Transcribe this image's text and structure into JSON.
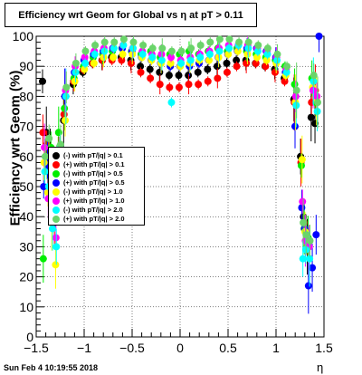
{
  "chart_data": {
    "type": "scatter",
    "title": "Efficiency wrt Geom for Global vs  η at pT > 0.11",
    "ylabel": "Efficiency wrt Geom (%)",
    "xlabel": "η",
    "xlim": [
      -1.5,
      1.5
    ],
    "ylim": [
      0,
      100
    ],
    "x_ticks": [
      "−1.5",
      "−1",
      "−0.5",
      "0",
      "0.5",
      "1",
      "1.5"
    ],
    "y_ticks": [
      "0",
      "10",
      "20",
      "30",
      "40",
      "50",
      "60",
      "70",
      "80",
      "90",
      "100"
    ],
    "grid": true,
    "legend_position": "middle-left",
    "series": [
      {
        "name": "(-) with pT/|q| > 0.1",
        "color": "#000000",
        "points": [
          [
            -1.42,
            85
          ],
          [
            -1.38,
            68
          ],
          [
            -1.34,
            62
          ],
          [
            -1.3,
            55
          ],
          [
            -1.26,
            48
          ],
          [
            -1.2,
            72
          ],
          [
            -1.1,
            84
          ],
          [
            -1.0,
            88
          ],
          [
            -0.9,
            91
          ],
          [
            -0.8,
            92
          ],
          [
            -0.7,
            93
          ],
          [
            -0.6,
            93
          ],
          [
            -0.5,
            92
          ],
          [
            -0.4,
            90
          ],
          [
            -0.3,
            89
          ],
          [
            -0.2,
            88
          ],
          [
            -0.1,
            87
          ],
          [
            0.0,
            87
          ],
          [
            0.1,
            87
          ],
          [
            0.2,
            88
          ],
          [
            0.3,
            89
          ],
          [
            0.4,
            90
          ],
          [
            0.5,
            91
          ],
          [
            0.6,
            92
          ],
          [
            0.7,
            92
          ],
          [
            0.8,
            91
          ],
          [
            0.9,
            90
          ],
          [
            1.0,
            89
          ],
          [
            1.1,
            86
          ],
          [
            1.2,
            79
          ],
          [
            1.27,
            60
          ],
          [
            1.3,
            40
          ],
          [
            1.34,
            30
          ],
          [
            1.38,
            73
          ],
          [
            1.42,
            71
          ]
        ]
      },
      {
        "name": "(+) with pT/|q| > 0.1",
        "color": "#ff0000",
        "points": [
          [
            -1.42,
            68
          ],
          [
            -1.38,
            64
          ],
          [
            -1.34,
            50
          ],
          [
            -1.3,
            38
          ],
          [
            -1.26,
            60
          ],
          [
            -1.2,
            74
          ],
          [
            -1.1,
            85
          ],
          [
            -1.0,
            89
          ],
          [
            -0.9,
            91
          ],
          [
            -0.8,
            92
          ],
          [
            -0.7,
            92
          ],
          [
            -0.6,
            92
          ],
          [
            -0.5,
            91
          ],
          [
            -0.4,
            88
          ],
          [
            -0.3,
            86
          ],
          [
            -0.2,
            84
          ],
          [
            -0.1,
            83
          ],
          [
            0.0,
            83
          ],
          [
            0.1,
            84
          ],
          [
            0.2,
            84
          ],
          [
            0.3,
            85
          ],
          [
            0.4,
            86
          ],
          [
            0.5,
            88
          ],
          [
            0.6,
            90
          ],
          [
            0.7,
            91
          ],
          [
            0.8,
            91
          ],
          [
            0.9,
            90
          ],
          [
            1.0,
            88
          ],
          [
            1.1,
            85
          ],
          [
            1.2,
            78
          ],
          [
            1.27,
            58
          ],
          [
            1.3,
            38
          ],
          [
            1.34,
            31
          ],
          [
            1.38,
            78
          ],
          [
            1.42,
            82
          ]
        ]
      },
      {
        "name": "(-) with pT/|q| > 0.5",
        "color": "#00ee00",
        "points": [
          [
            -1.42,
            26
          ],
          [
            -1.38,
            59
          ],
          [
            -1.34,
            63
          ],
          [
            -1.3,
            50
          ],
          [
            -1.26,
            68
          ],
          [
            -1.2,
            76
          ],
          [
            -1.1,
            86
          ],
          [
            -1.0,
            90
          ],
          [
            -0.9,
            93
          ],
          [
            -0.8,
            94
          ],
          [
            -0.7,
            95
          ],
          [
            -0.6,
            96
          ],
          [
            -0.5,
            95
          ],
          [
            -0.4,
            94
          ],
          [
            -0.3,
            95
          ],
          [
            -0.2,
            93
          ],
          [
            -0.1,
            94
          ],
          [
            0.0,
            94
          ],
          [
            0.1,
            95
          ],
          [
            0.2,
            94
          ],
          [
            0.3,
            95
          ],
          [
            0.4,
            96
          ],
          [
            0.5,
            95
          ],
          [
            0.6,
            96
          ],
          [
            0.7,
            95
          ],
          [
            0.8,
            94
          ],
          [
            0.9,
            93
          ],
          [
            1.0,
            92
          ],
          [
            1.1,
            90
          ],
          [
            1.2,
            84
          ],
          [
            1.27,
            57
          ],
          [
            1.3,
            36
          ],
          [
            1.34,
            33
          ],
          [
            1.38,
            86
          ],
          [
            1.42,
            78
          ]
        ]
      },
      {
        "name": "(+) with pT/|q| > 0.5",
        "color": "#0000ff",
        "points": [
          [
            -1.42,
            50
          ],
          [
            -1.38,
            57
          ],
          [
            -1.34,
            47
          ],
          [
            -1.3,
            42
          ],
          [
            -1.26,
            60
          ],
          [
            -1.2,
            80
          ],
          [
            -1.1,
            88
          ],
          [
            -1.0,
            92
          ],
          [
            -0.9,
            94
          ],
          [
            -0.8,
            95
          ],
          [
            -0.7,
            96
          ],
          [
            -0.6,
            96
          ],
          [
            -0.5,
            95
          ],
          [
            -0.4,
            93
          ],
          [
            -0.3,
            92
          ],
          [
            -0.2,
            91
          ],
          [
            -0.1,
            90
          ],
          [
            0.0,
            90
          ],
          [
            0.1,
            90
          ],
          [
            0.2,
            91
          ],
          [
            0.3,
            92
          ],
          [
            0.4,
            93
          ],
          [
            0.5,
            94
          ],
          [
            0.6,
            95
          ],
          [
            0.7,
            96
          ],
          [
            0.8,
            96
          ],
          [
            0.9,
            95
          ],
          [
            1.0,
            93
          ],
          [
            1.1,
            88
          ],
          [
            1.2,
            70
          ],
          [
            1.27,
            43
          ],
          [
            1.3,
            36
          ],
          [
            1.34,
            17
          ],
          [
            1.38,
            23
          ],
          [
            1.42,
            34
          ],
          [
            1.45,
            100
          ]
        ]
      },
      {
        "name": "(-) with pT/|q| > 1.0",
        "color": "#ffff00",
        "points": [
          [
            -1.42,
            58
          ],
          [
            -1.38,
            48
          ],
          [
            -1.34,
            38
          ],
          [
            -1.3,
            24
          ],
          [
            -1.26,
            55
          ],
          [
            -1.2,
            72
          ],
          [
            -1.1,
            85
          ],
          [
            -1.0,
            89
          ],
          [
            -0.9,
            91
          ],
          [
            -0.8,
            93
          ],
          [
            -0.7,
            93
          ],
          [
            -0.6,
            94
          ],
          [
            -0.5,
            94
          ],
          [
            -0.4,
            93
          ],
          [
            -0.3,
            92
          ],
          [
            -0.2,
            91
          ],
          [
            -0.1,
            91
          ],
          [
            0.0,
            90
          ],
          [
            0.1,
            91
          ],
          [
            0.2,
            92
          ],
          [
            0.3,
            92
          ],
          [
            0.4,
            93
          ],
          [
            0.5,
            94
          ],
          [
            0.6,
            95
          ],
          [
            0.7,
            94
          ],
          [
            0.8,
            93
          ],
          [
            0.9,
            92
          ],
          [
            1.0,
            91
          ],
          [
            1.1,
            87
          ],
          [
            1.2,
            78
          ],
          [
            1.27,
            59
          ],
          [
            1.3,
            35
          ],
          [
            1.34,
            30
          ],
          [
            1.38,
            83
          ],
          [
            1.42,
            79
          ]
        ]
      },
      {
        "name": "(+) with pT/|q| > 1.0",
        "color": "#ff00ff",
        "points": [
          [
            -1.42,
            63
          ],
          [
            -1.38,
            46
          ],
          [
            -1.34,
            41
          ],
          [
            -1.3,
            33
          ],
          [
            -1.26,
            58
          ],
          [
            -1.2,
            82
          ],
          [
            -1.1,
            90
          ],
          [
            -1.0,
            93
          ],
          [
            -0.9,
            95
          ],
          [
            -0.8,
            96
          ],
          [
            -0.7,
            96
          ],
          [
            -0.6,
            97
          ],
          [
            -0.5,
            96
          ],
          [
            -0.4,
            95
          ],
          [
            -0.3,
            94
          ],
          [
            -0.2,
            94
          ],
          [
            -0.1,
            93
          ],
          [
            0.0,
            92
          ],
          [
            0.1,
            93
          ],
          [
            0.2,
            94
          ],
          [
            0.3,
            95
          ],
          [
            0.4,
            96
          ],
          [
            0.5,
            97
          ],
          [
            0.6,
            97
          ],
          [
            0.7,
            97
          ],
          [
            0.8,
            96
          ],
          [
            0.9,
            95
          ],
          [
            1.0,
            93
          ],
          [
            1.1,
            89
          ],
          [
            1.2,
            80
          ],
          [
            1.27,
            45
          ],
          [
            1.3,
            32
          ],
          [
            1.34,
            30
          ],
          [
            1.38,
            82
          ],
          [
            1.42,
            80
          ]
        ]
      },
      {
        "name": "(-) with pT/|q| > 2.0",
        "color": "#00ffff",
        "points": [
          [
            -1.42,
            55
          ],
          [
            -1.38,
            50
          ],
          [
            -1.34,
            36
          ],
          [
            -1.3,
            30
          ],
          [
            -1.26,
            63
          ],
          [
            -1.2,
            80
          ],
          [
            -1.1,
            88
          ],
          [
            -1.0,
            91
          ],
          [
            -0.9,
            94
          ],
          [
            -0.8,
            95
          ],
          [
            -0.7,
            96
          ],
          [
            -0.6,
            97
          ],
          [
            -0.5,
            96
          ],
          [
            -0.4,
            94
          ],
          [
            -0.3,
            93
          ],
          [
            -0.2,
            92
          ],
          [
            -0.1,
            78
          ],
          [
            0.0,
            91
          ],
          [
            0.1,
            92
          ],
          [
            0.2,
            93
          ],
          [
            0.3,
            94
          ],
          [
            0.4,
            95
          ],
          [
            0.5,
            96
          ],
          [
            0.6,
            97
          ],
          [
            0.7,
            96
          ],
          [
            0.8,
            95
          ],
          [
            0.9,
            94
          ],
          [
            1.0,
            92
          ],
          [
            1.1,
            88
          ],
          [
            1.2,
            77
          ],
          [
            1.27,
            26
          ],
          [
            1.3,
            29
          ],
          [
            1.34,
            26
          ],
          [
            1.38,
            85
          ],
          [
            1.42,
            75
          ]
        ]
      },
      {
        "name": "(+) with pT/|q| > 2.0",
        "color": "#6ad46a",
        "points": [
          [
            -1.42,
            60
          ],
          [
            -1.38,
            66
          ],
          [
            -1.34,
            53
          ],
          [
            -1.3,
            56
          ],
          [
            -1.26,
            64
          ],
          [
            -1.2,
            83
          ],
          [
            -1.1,
            91
          ],
          [
            -1.0,
            95
          ],
          [
            -0.9,
            97
          ],
          [
            -0.8,
            98
          ],
          [
            -0.7,
            98
          ],
          [
            -0.6,
            99
          ],
          [
            -0.5,
            98
          ],
          [
            -0.4,
            97
          ],
          [
            -0.3,
            96
          ],
          [
            -0.2,
            96
          ],
          [
            -0.1,
            95
          ],
          [
            0.0,
            95
          ],
          [
            0.1,
            96
          ],
          [
            0.2,
            97
          ],
          [
            0.3,
            98
          ],
          [
            0.4,
            99
          ],
          [
            0.5,
            99
          ],
          [
            0.6,
            98
          ],
          [
            0.7,
            98
          ],
          [
            0.8,
            97
          ],
          [
            0.9,
            96
          ],
          [
            1.0,
            94
          ],
          [
            1.1,
            90
          ],
          [
            1.2,
            82
          ],
          [
            1.27,
            38
          ],
          [
            1.3,
            34
          ],
          [
            1.34,
            32
          ],
          [
            1.38,
            87
          ],
          [
            1.42,
            78
          ]
        ]
      }
    ]
  },
  "footer": {
    "timestamp": "Sun Feb  4 10:19:55 2018"
  }
}
